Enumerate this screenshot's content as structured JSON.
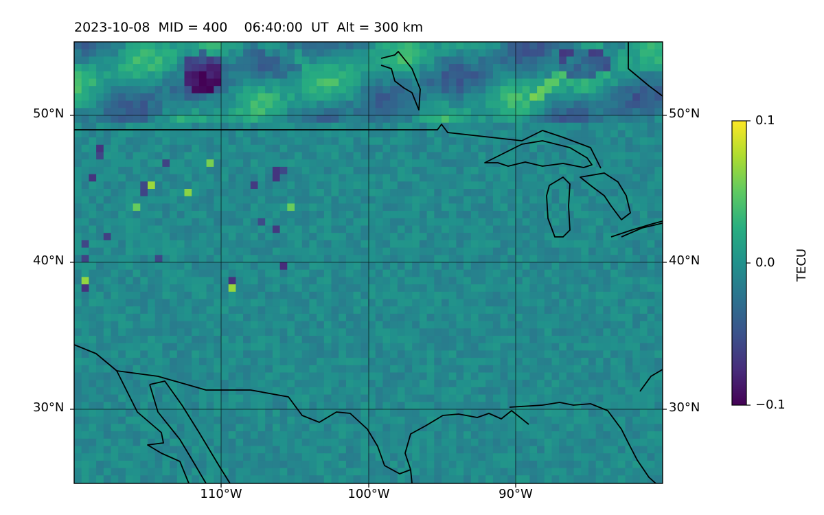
{
  "title": "2023-10-08  MID = 400    06:40:00  UT  Alt = 300 km",
  "map": {
    "lon_range": [
      -120,
      -80
    ],
    "lat_range": [
      25,
      55
    ],
    "lat_gridlines": [
      {
        "value": 50,
        "label": "50°N"
      },
      {
        "value": 40,
        "label": "40°N"
      },
      {
        "value": 30,
        "label": "30°N"
      }
    ],
    "lon_gridlines": [
      {
        "value": -110,
        "label": "110°W"
      },
      {
        "value": -100,
        "label": "100°W"
      },
      {
        "value": -90,
        "label": "90°W"
      }
    ],
    "colormap": "viridis"
  },
  "colorbar": {
    "label": "TECU",
    "range": [
      -0.1,
      0.1
    ],
    "ticks": [
      {
        "value": 0.1,
        "label": "0.1"
      },
      {
        "value": 0.0,
        "label": "0.0"
      },
      {
        "value": -0.1,
        "label": "−0.1"
      }
    ]
  }
}
